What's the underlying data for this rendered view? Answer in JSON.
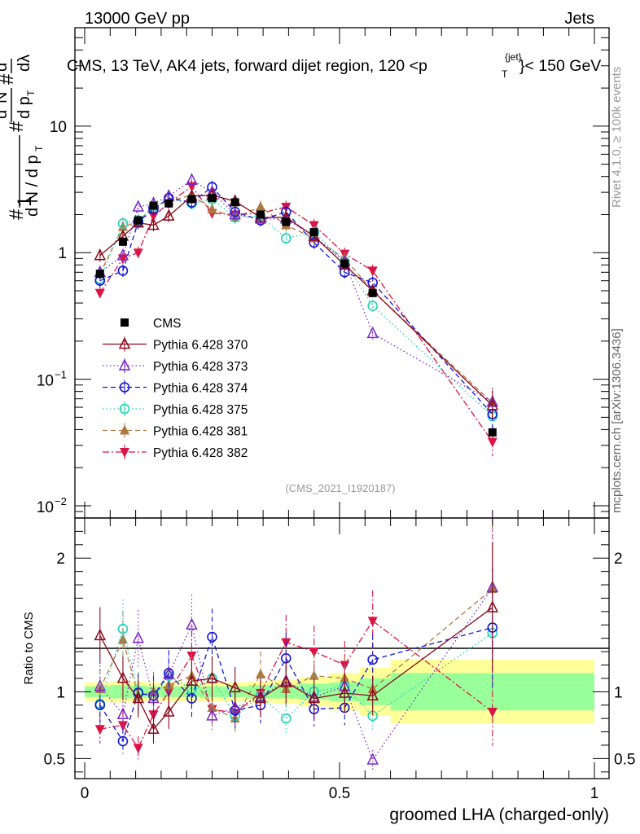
{
  "header": {
    "left": "13000 GeV pp",
    "right": "Jets"
  },
  "side_labels": {
    "rivet": "Rivet 4.1.0, ≥ 100k events",
    "mcplots": "mcplots.cern.ch [arXiv:1306.3436]"
  },
  "title": "CMS, 13 TeV, AK4 jets, forward dijet region, 120 <p_T^{jet}< 150 GeV",
  "analysis_tag": "(CMS_2021_I1920187)",
  "colors": {
    "CMS": "#000000",
    "p370": "#8b0a1a",
    "p373": "#7a28c8",
    "p374": "#1414d2",
    "p375": "#20d2b4",
    "p381": "#b07840",
    "p382": "#dc1446",
    "band_inner": "#99ff99",
    "band_outer": "#ffff99"
  },
  "chart_data": [
    {
      "type": "line",
      "panel": "main",
      "ylabel": "1/dN/dp_T  d²N/dp_T dλ",
      "yscale": "log",
      "xlim": [
        0,
        1
      ],
      "ylim": [
        0.008,
        60
      ],
      "yticks": [
        {
          "value": 0.01,
          "label": "10",
          "exp": "−2"
        },
        {
          "value": 0.1,
          "label": "10",
          "exp": "−1"
        },
        {
          "value": 1,
          "label": "1",
          "exp": ""
        },
        {
          "value": 10,
          "label": "10",
          "exp": ""
        }
      ],
      "x": [
        0.03,
        0.075,
        0.105,
        0.135,
        0.165,
        0.21,
        0.25,
        0.295,
        0.345,
        0.395,
        0.45,
        0.51,
        0.565,
        0.8
      ],
      "series": [
        {
          "name": "CMS",
          "key": "CMS",
          "style": "none",
          "marker": "square-filled",
          "values": [
            0.68,
            1.22,
            1.8,
            2.35,
            2.45,
            2.65,
            2.7,
            2.5,
            2.0,
            1.75,
            1.45,
            0.82,
            0.48,
            0.038
          ]
        },
        {
          "name": "Pythia 6.428 370",
          "key": "p370",
          "style": "solid",
          "marker": "triangle-open",
          "values": [
            0.95,
            1.35,
            1.72,
            1.65,
            1.95,
            2.8,
            2.85,
            2.55,
            1.9,
            1.9,
            1.35,
            0.8,
            0.5,
            0.062
          ]
        },
        {
          "name": "Pythia 6.428 373",
          "key": "p373",
          "style": "dotted",
          "marker": "triangle-open",
          "values": [
            0.7,
            0.95,
            2.3,
            2.45,
            2.8,
            3.75,
            3.0,
            2.0,
            1.85,
            1.85,
            1.35,
            0.85,
            0.23,
            0.066
          ]
        },
        {
          "name": "Pythia 6.428 374",
          "key": "p374",
          "style": "dashed",
          "marker": "circle-open",
          "values": [
            0.6,
            0.72,
            1.75,
            2.2,
            2.7,
            2.5,
            3.3,
            2.1,
            1.8,
            2.1,
            1.2,
            0.7,
            0.58,
            0.053
          ]
        },
        {
          "name": "Pythia 6.428 375",
          "key": "p375",
          "style": "dotted",
          "marker": "circle-open",
          "values": [
            0.62,
            1.7,
            1.8,
            2.3,
            2.65,
            2.45,
            2.65,
            1.9,
            1.95,
            1.3,
            1.45,
            0.85,
            0.38,
            0.051
          ]
        },
        {
          "name": "Pythia 6.428 381",
          "key": "p381",
          "style": "dashed",
          "marker": "triangle-filled",
          "values": [
            0.68,
            1.6,
            1.75,
            2.35,
            2.55,
            2.85,
            2.2,
            1.9,
            2.3,
            1.65,
            1.3,
            0.9,
            0.5,
            0.065
          ]
        },
        {
          "name": "Pythia 6.428 382",
          "key": "p382",
          "style": "dashdot",
          "marker": "triangle-down-filled",
          "values": [
            0.48,
            0.9,
            1.0,
            1.95,
            2.45,
            3.35,
            2.05,
            2.0,
            2.05,
            2.3,
            1.65,
            0.98,
            0.72,
            0.032
          ]
        }
      ]
    },
    {
      "type": "line",
      "panel": "ratio",
      "ylabel": "Ratio to CMS",
      "xlabel": "groomed LHA (charged-only)",
      "xlim": [
        0,
        1
      ],
      "xticks": [
        {
          "value": 0,
          "label": "0"
        },
        {
          "value": 0.5,
          "label": "0.5"
        },
        {
          "value": 1,
          "label": "1"
        }
      ],
      "ylim": [
        0.35,
        2.3
      ],
      "yticks": [
        {
          "value": 0.5,
          "label": "0.5"
        },
        {
          "value": 1,
          "label": "1"
        },
        {
          "value": 2,
          "label": "2"
        }
      ],
      "x": [
        0.03,
        0.075,
        0.105,
        0.135,
        0.165,
        0.21,
        0.25,
        0.295,
        0.345,
        0.395,
        0.45,
        0.51,
        0.565,
        0.8
      ],
      "band_edges": [
        0.0,
        0.05,
        0.09,
        0.12,
        0.15,
        0.18,
        0.23,
        0.27,
        0.32,
        0.37,
        0.42,
        0.48,
        0.54,
        0.6,
        1.0
      ],
      "band_inner": [
        0.04,
        0.05,
        0.045,
        0.04,
        0.04,
        0.04,
        0.04,
        0.04,
        0.05,
        0.05,
        0.06,
        0.07,
        0.1,
        0.14
      ],
      "band_outer": [
        0.07,
        0.08,
        0.075,
        0.07,
        0.07,
        0.07,
        0.07,
        0.07,
        0.08,
        0.09,
        0.11,
        0.14,
        0.18,
        0.24
      ],
      "series": [
        {
          "key": "p370",
          "values": [
            1.42,
            1.1,
            0.95,
            0.72,
            0.85,
            1.08,
            1.1,
            1.03,
            0.95,
            1.07,
            0.95,
            0.99,
            0.97,
            1.63
          ]
        },
        {
          "key": "p373",
          "values": [
            1.04,
            0.83,
            1.4,
            0.95,
            1.13,
            1.5,
            0.82,
            0.88,
            0.96,
            1.08,
            0.96,
            1.04,
            0.49,
            1.78
          ]
        },
        {
          "key": "p374",
          "values": [
            0.9,
            0.63,
            0.99,
            0.97,
            1.14,
            0.95,
            1.41,
            0.86,
            0.9,
            1.25,
            0.87,
            0.88,
            1.24,
            1.48
          ]
        },
        {
          "key": "p375",
          "values": [
            0.91,
            1.47,
            1.0,
            0.97,
            1.12,
            1.02,
            1.1,
            0.82,
            0.97,
            0.8,
            1.0,
            1.04,
            0.82,
            1.44
          ]
        },
        {
          "key": "p381",
          "values": [
            1.02,
            1.39,
            0.97,
            1.0,
            1.05,
            1.12,
            0.88,
            0.8,
            1.13,
            1.02,
            1.12,
            1.1,
            1.02,
            1.77
          ]
        },
        {
          "key": "p382",
          "values": [
            0.72,
            0.75,
            0.58,
            0.83,
            1.0,
            1.27,
            0.87,
            0.84,
            0.99,
            1.37,
            1.3,
            1.2,
            1.53,
            0.85
          ]
        }
      ]
    }
  ]
}
